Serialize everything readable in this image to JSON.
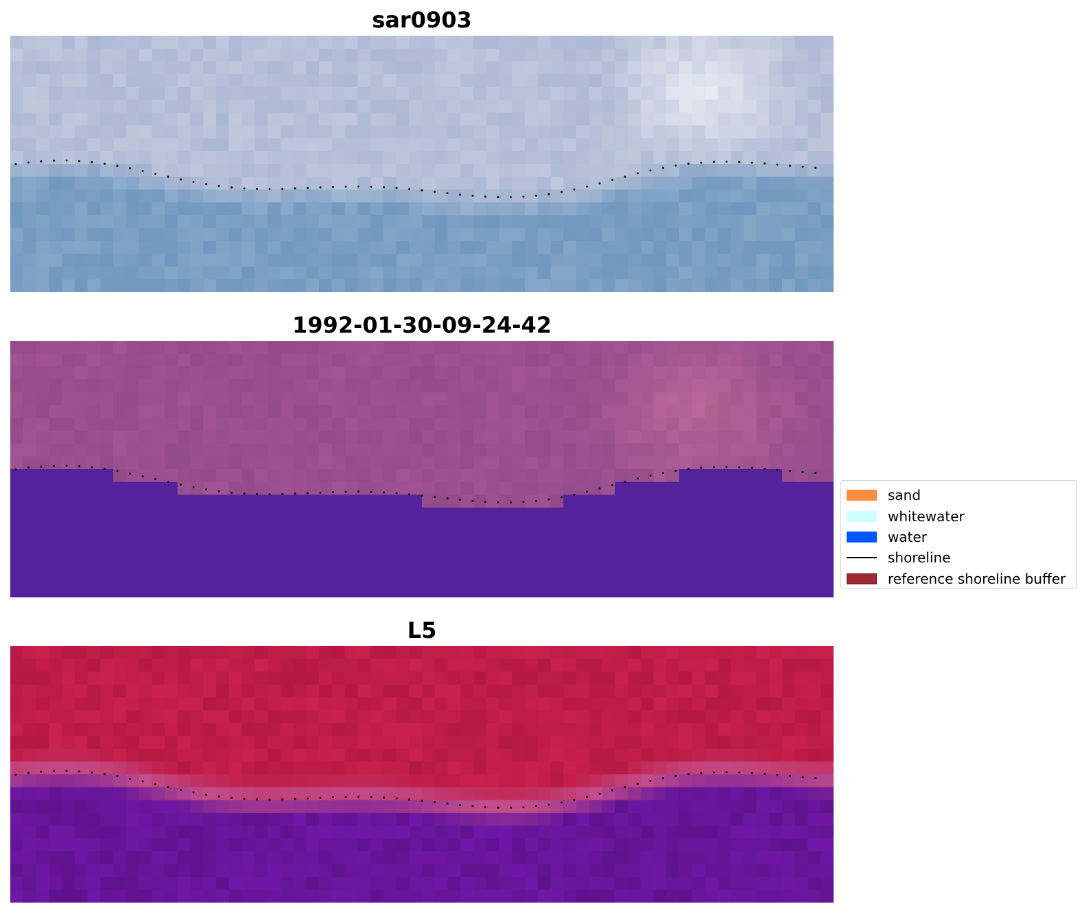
{
  "panels": [
    {
      "title": "sar0903",
      "style": "sar"
    },
    {
      "title": "1992-01-30-09-24-42",
      "style": "classified"
    },
    {
      "title": "L5",
      "style": "mndwi"
    }
  ],
  "legend": {
    "items": [
      {
        "label": "sand",
        "color": "#ff8c3f",
        "kind": "patch"
      },
      {
        "label": "whitewater",
        "color": "#ccffff",
        "kind": "patch"
      },
      {
        "label": "water",
        "color": "#0057ff",
        "kind": "patch"
      },
      {
        "label": "shoreline",
        "color": "#000000",
        "kind": "line"
      },
      {
        "label": "reference shoreline buffer",
        "color": "#9e2b33",
        "kind": "patch"
      }
    ]
  },
  "colors": {
    "land_purple": "#9a4f8e",
    "water_purple": "#54229a",
    "sar_land": "#b7c0d8",
    "sar_water": "#7a9fc3",
    "index_red": "#bf1d47",
    "index_purple": "#67159a"
  }
}
